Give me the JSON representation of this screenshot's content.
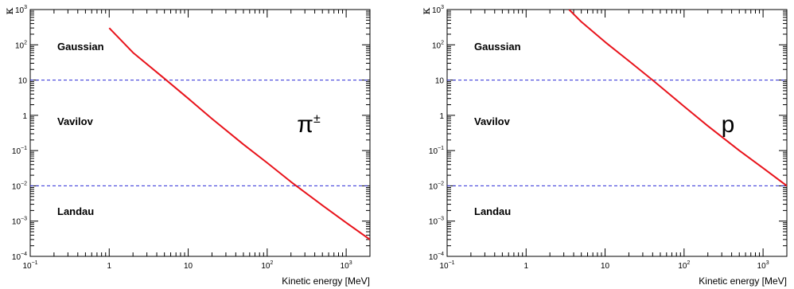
{
  "chart_data": [
    {
      "type": "line",
      "xlabel": "Kinetic energy [MeV]",
      "ylabel": "κ",
      "particle": "π",
      "particle_sup": "±",
      "xscale": "log",
      "yscale": "log",
      "xlim": [
        0.1,
        2000
      ],
      "ylim": [
        0.0001,
        1000
      ],
      "x_ticks": [
        {
          "base": "10",
          "exp": "−1"
        },
        {
          "base": "1",
          "exp": ""
        },
        {
          "base": "10",
          "exp": ""
        },
        {
          "base": "10",
          "exp": "2"
        },
        {
          "base": "10",
          "exp": "3"
        }
      ],
      "y_ticks": [
        {
          "base": "10",
          "exp": "−4"
        },
        {
          "base": "10",
          "exp": "−3"
        },
        {
          "base": "10",
          "exp": "−2"
        },
        {
          "base": "10",
          "exp": "−1"
        },
        {
          "base": "1",
          "exp": ""
        },
        {
          "base": "10",
          "exp": ""
        },
        {
          "base": "10",
          "exp": "2"
        },
        {
          "base": "10",
          "exp": "3"
        }
      ],
      "regions": [
        "Gaussian",
        "Vavilov",
        "Landau"
      ],
      "thresholds": [
        10,
        0.01
      ],
      "series": [
        {
          "color": "#e8131b",
          "x": [
            1,
            2,
            5,
            10,
            20,
            50,
            100,
            200,
            500,
            1000,
            2000
          ],
          "y": [
            300,
            60,
            11,
            3.0,
            0.8,
            0.15,
            0.045,
            0.013,
            0.0028,
            0.0009,
            0.0003
          ]
        }
      ]
    },
    {
      "type": "line",
      "xlabel": "Kinetic energy [MeV]",
      "ylabel": "κ",
      "particle": "p",
      "particle_sup": "",
      "xscale": "log",
      "yscale": "log",
      "xlim": [
        0.1,
        2000
      ],
      "ylim": [
        0.0001,
        1000
      ],
      "x_ticks": [
        {
          "base": "10",
          "exp": "−1"
        },
        {
          "base": "1",
          "exp": ""
        },
        {
          "base": "10",
          "exp": ""
        },
        {
          "base": "10",
          "exp": "2"
        },
        {
          "base": "10",
          "exp": "3"
        }
      ],
      "y_ticks": [
        {
          "base": "10",
          "exp": "−4"
        },
        {
          "base": "10",
          "exp": "−3"
        },
        {
          "base": "10",
          "exp": "−2"
        },
        {
          "base": "10",
          "exp": "−1"
        },
        {
          "base": "1",
          "exp": ""
        },
        {
          "base": "10",
          "exp": ""
        },
        {
          "base": "10",
          "exp": "2"
        },
        {
          "base": "10",
          "exp": "3"
        }
      ],
      "regions": [
        "Gaussian",
        "Vavilov",
        "Landau"
      ],
      "thresholds": [
        10,
        0.01
      ],
      "series": [
        {
          "color": "#e8131b",
          "x": [
            3.5,
            5,
            10,
            20,
            40,
            100,
            200,
            500,
            1000,
            2000
          ],
          "y": [
            1000,
            450,
            120,
            35,
            10,
            1.8,
            0.5,
            0.1,
            0.032,
            0.01
          ]
        }
      ]
    }
  ],
  "colors": {
    "curve": "#e8131b",
    "threshold": "#2b2bd6",
    "axis": "#000000"
  }
}
